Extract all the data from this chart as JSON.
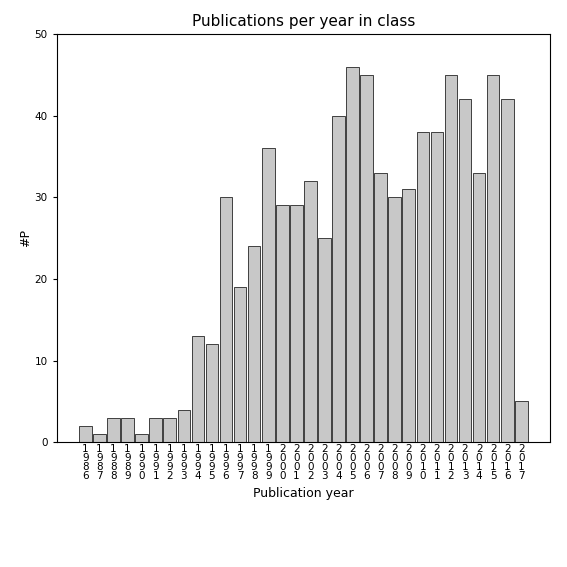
{
  "title": "Publications per year in class",
  "xlabel": "Publication year",
  "ylabel": "#P",
  "years": [
    1986,
    1987,
    1988,
    1989,
    1990,
    1991,
    1992,
    1993,
    1994,
    1995,
    1996,
    1997,
    1998,
    1999,
    2000,
    2001,
    2002,
    2003,
    2004,
    2005,
    2006,
    2007,
    2008,
    2009,
    2010,
    2011,
    2012,
    2013,
    2014,
    2015,
    2016,
    2017
  ],
  "values": [
    2,
    1,
    3,
    3,
    1,
    3,
    3,
    4,
    13,
    12,
    30,
    19,
    24,
    36,
    29,
    29,
    32,
    25,
    40,
    46,
    45,
    33,
    30,
    31,
    38,
    38,
    45,
    42,
    33,
    45,
    42,
    5
  ],
  "bar_color": "#c8c8c8",
  "bar_edge_color": "#000000",
  "ylim": [
    0,
    50
  ],
  "yticks": [
    0,
    10,
    20,
    30,
    40,
    50
  ],
  "bg_color": "#ffffff",
  "title_fontsize": 11,
  "label_fontsize": 9,
  "tick_fontsize": 7.5
}
